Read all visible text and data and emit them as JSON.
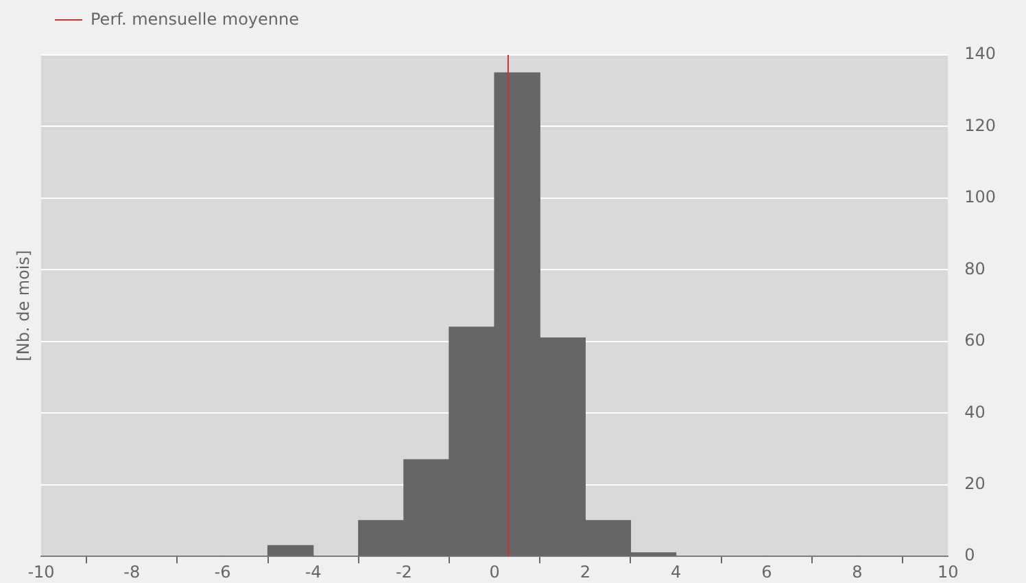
{
  "chart_data": {
    "type": "histogram",
    "ylabel": "[Nb. de mois]",
    "bins": [
      -10,
      -9,
      -8,
      -7,
      -6,
      -5,
      -4,
      -3,
      -2,
      -1,
      0,
      1,
      2,
      3,
      4,
      5,
      6,
      7,
      8,
      9,
      10
    ],
    "values": [
      0,
      0,
      0,
      0,
      0,
      3,
      0,
      10,
      27,
      64,
      135,
      61,
      10,
      1,
      0,
      0,
      0,
      0,
      0,
      0
    ],
    "color": "#666666",
    "xlim": [
      -10,
      10
    ],
    "xticks": [
      -10,
      -8,
      -6,
      -4,
      -2,
      0,
      2,
      4,
      6,
      8,
      10
    ],
    "ylim": [
      0,
      140
    ],
    "yticks": [
      0,
      20,
      40,
      60,
      80,
      100,
      120,
      140
    ],
    "grid": "y",
    "legend": "top left",
    "ref_lines": [
      {
        "axis": "x",
        "value": 0.3,
        "label": "Perf. mensuelle moyenne",
        "color": "#cc3333"
      }
    ]
  }
}
